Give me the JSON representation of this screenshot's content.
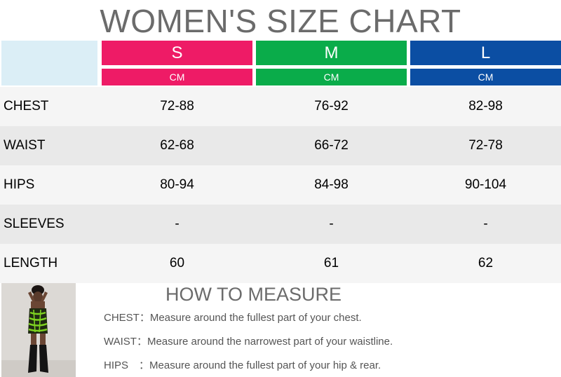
{
  "title": "WOMEN'S SIZE CHART",
  "colors": {
    "S": "#ee1b66",
    "M": "#0aac4a",
    "L": "#0b4ea3",
    "corner": "#dbeef6",
    "row_light": "#f5f5f5",
    "row_dark": "#e9e9e9"
  },
  "sizes": [
    {
      "label": "S",
      "unit": "CM"
    },
    {
      "label": "M",
      "unit": "CM"
    },
    {
      "label": "L",
      "unit": "CM"
    }
  ],
  "rows": [
    {
      "label": "CHEST",
      "values": [
        "72-88",
        "76-92",
        "82-98"
      ]
    },
    {
      "label": "WAIST",
      "values": [
        "62-68",
        "66-72",
        "72-78"
      ]
    },
    {
      "label": "HIPS",
      "values": [
        "80-94",
        "84-98",
        "90-104"
      ]
    },
    {
      "label": "SLEEVES",
      "values": [
        "-",
        "-",
        "-"
      ]
    },
    {
      "label": "LENGTH",
      "values": [
        "60",
        "61",
        "62"
      ]
    }
  ],
  "measure": {
    "title": "HOW TO MEASURE",
    "notes": [
      {
        "key": "CHEST：",
        "text": "Measure around the fullest part of your chest."
      },
      {
        "key": "WAIST：",
        "text": "Measure around the narrowest part of your waistline."
      },
      {
        "key": "HIPS　：",
        "text": "Measure around the fullest part of your hip & rear."
      }
    ]
  }
}
